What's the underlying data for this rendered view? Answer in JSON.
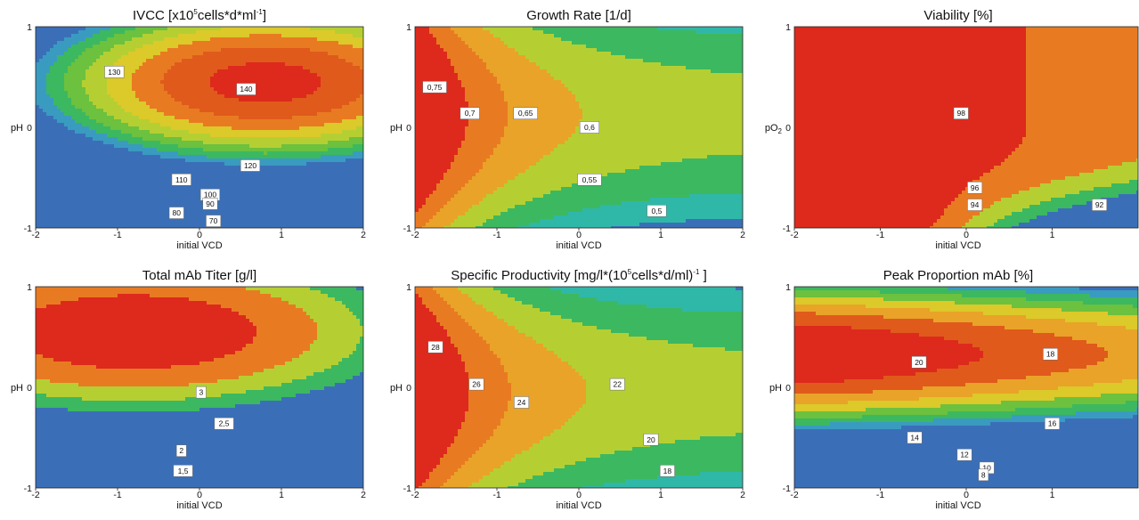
{
  "chart_data": [
    {
      "type": "contour",
      "title_main": "IVCC [x10",
      "title_sup1": "5",
      "title_mid": "cells*d*ml",
      "title_sup2": "-1",
      "title_end": "]",
      "xlabel": "initial VCD",
      "ylabel": "pH",
      "ylabel_sub": "",
      "xlim": [
        -2,
        2
      ],
      "ylim": [
        -1,
        1
      ],
      "xticks": [
        "-2",
        "-1",
        "0",
        "1",
        "2"
      ],
      "yticks": [
        "-1",
        "0",
        "1"
      ],
      "levels": [
        70,
        80,
        90,
        100,
        110,
        120,
        130,
        140
      ],
      "contour_labels": [
        {
          "text": "130",
          "x": -1.04,
          "y": 0.55
        },
        {
          "text": "140",
          "x": 0.57,
          "y": 0.38
        },
        {
          "text": "120",
          "x": 0.62,
          "y": -0.38
        },
        {
          "text": "110",
          "x": -0.22,
          "y": -0.52
        },
        {
          "text": "100",
          "x": 0.13,
          "y": -0.67
        },
        {
          "text": "90",
          "x": 0.13,
          "y": -0.76
        },
        {
          "text": "80",
          "x": -0.28,
          "y": -0.85
        },
        {
          "text": "70",
          "x": 0.17,
          "y": -0.93
        }
      ]
    },
    {
      "type": "contour",
      "title_main": "Growth Rate [1/d]",
      "title_sup1": "",
      "title_mid": "",
      "title_sup2": "",
      "title_end": "",
      "xlabel": "initial VCD",
      "ylabel": "pH",
      "ylabel_sub": "",
      "xlim": [
        -2,
        2
      ],
      "ylim": [
        -1,
        1
      ],
      "xticks": [
        "-2",
        "-1",
        "0",
        "1",
        "2"
      ],
      "yticks": [
        "-1",
        "0",
        "1"
      ],
      "levels": [
        0.5,
        0.55,
        0.6,
        0.65,
        0.7,
        0.75
      ],
      "contour_labels": [
        {
          "text": "0,75",
          "x": -1.76,
          "y": 0.4
        },
        {
          "text": "0,7",
          "x": -1.33,
          "y": 0.14
        },
        {
          "text": "0,65",
          "x": -0.65,
          "y": 0.14
        },
        {
          "text": "0,6",
          "x": 0.13,
          "y": 0.0
        },
        {
          "text": "0,55",
          "x": 0.13,
          "y": -0.52
        },
        {
          "text": "0,5",
          "x": 0.95,
          "y": -0.83
        }
      ]
    },
    {
      "type": "contour",
      "title_main": "Viability [%]",
      "title_sup1": "",
      "title_mid": "",
      "title_sup2": "",
      "title_end": "",
      "xlabel": "initial VCD",
      "ylabel": "pO",
      "ylabel_sub": "2",
      "xlim": [
        -2,
        2
      ],
      "ylim": [
        -1,
        1
      ],
      "xticks": [
        "-2",
        "-1",
        "0",
        "1"
      ],
      "yticks": [
        "-1",
        "0",
        "1"
      ],
      "levels": [
        92,
        94,
        96,
        98
      ],
      "contour_labels": [
        {
          "text": "98",
          "x": -0.06,
          "y": 0.14
        },
        {
          "text": "96",
          "x": 0.1,
          "y": -0.6
        },
        {
          "text": "94",
          "x": 0.1,
          "y": -0.77
        },
        {
          "text": "92",
          "x": 1.55,
          "y": -0.77
        }
      ]
    },
    {
      "type": "contour",
      "title_main": "Total mAb Titer [g/l]",
      "title_sup1": "",
      "title_mid": "",
      "title_sup2": "",
      "title_end": "",
      "xlabel": "initial VCD",
      "ylabel": "pH",
      "ylabel_sub": "",
      "xlim": [
        -2,
        2
      ],
      "ylim": [
        -1,
        1
      ],
      "xticks": [
        "-2",
        "-1",
        "0",
        "1",
        "2"
      ],
      "yticks": [
        "-1",
        "0",
        "1"
      ],
      "levels": [
        1.5,
        2,
        2.5,
        3
      ],
      "contour_labels": [
        {
          "text": "3",
          "x": 0.02,
          "y": -0.05
        },
        {
          "text": "2,5",
          "x": 0.3,
          "y": -0.36
        },
        {
          "text": "2",
          "x": -0.22,
          "y": -0.63
        },
        {
          "text": "1,5",
          "x": -0.2,
          "y": -0.83
        }
      ]
    },
    {
      "type": "contour",
      "title_main": "Specific Productivity [mg/l*(10",
      "title_sup1": "5",
      "title_mid": "cells*d/ml)",
      "title_sup2": "-1",
      "title_end": " ]",
      "xlabel": "initial VCD",
      "ylabel": "pH",
      "ylabel_sub": "",
      "xlim": [
        -2,
        2
      ],
      "ylim": [
        -1,
        1
      ],
      "xticks": [
        "-2",
        "-1",
        "0",
        "1",
        "2"
      ],
      "yticks": [
        "-1",
        "0",
        "1"
      ],
      "levels": [
        18,
        20,
        22,
        24,
        26,
        28
      ],
      "contour_labels": [
        {
          "text": "28",
          "x": -1.75,
          "y": 0.4
        },
        {
          "text": "26",
          "x": -1.25,
          "y": 0.03
        },
        {
          "text": "24",
          "x": -0.7,
          "y": -0.15
        },
        {
          "text": "22",
          "x": 0.47,
          "y": 0.03
        },
        {
          "text": "20",
          "x": 0.88,
          "y": -0.52
        },
        {
          "text": "18",
          "x": 1.08,
          "y": -0.83
        }
      ]
    },
    {
      "type": "contour",
      "title_main": "Peak Proportion mAb [%]",
      "title_sup1": "",
      "title_mid": "",
      "title_sup2": "",
      "title_end": "",
      "xlabel": "initial VCD",
      "ylabel": "pH",
      "ylabel_sub": "",
      "xlim": [
        -2,
        2
      ],
      "ylim": [
        -1,
        1
      ],
      "xticks": [
        "-2",
        "-1",
        "0",
        "1"
      ],
      "yticks": [
        "-1",
        "0",
        "1"
      ],
      "levels": [
        8,
        10,
        12,
        14,
        16,
        18,
        20
      ],
      "contour_labels": [
        {
          "text": "20",
          "x": -0.55,
          "y": 0.25
        },
        {
          "text": "18",
          "x": 0.98,
          "y": 0.33
        },
        {
          "text": "16",
          "x": 1.0,
          "y": -0.36
        },
        {
          "text": "14",
          "x": -0.6,
          "y": -0.5
        },
        {
          "text": "12",
          "x": -0.02,
          "y": -0.67
        },
        {
          "text": "10",
          "x": 0.24,
          "y": -0.8
        },
        {
          "text": "8",
          "x": 0.2,
          "y": -0.87
        }
      ]
    }
  ]
}
